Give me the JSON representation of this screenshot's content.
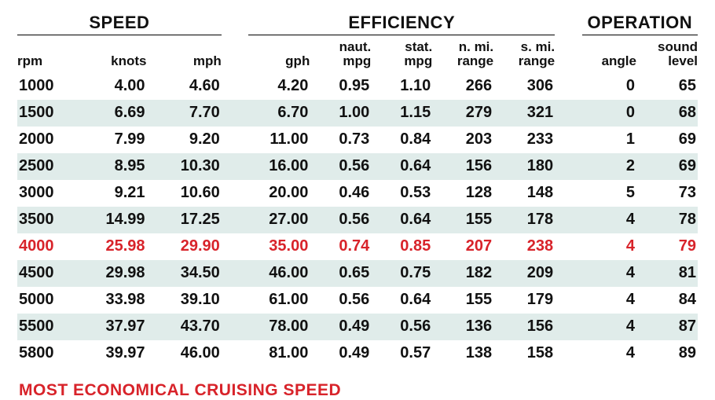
{
  "table": {
    "group_headers": {
      "speed": "SPEED",
      "efficiency": "EFFICIENCY",
      "operation": "OPERATION"
    },
    "sub_headers": {
      "rpm": "rpm",
      "knots": "knots",
      "mph": "mph",
      "gph": "gph",
      "nmpg_l1": "naut.",
      "nmpg_l2": "mpg",
      "smpg_l1": "stat.",
      "smpg_l2": "mpg",
      "nrng_l1": "n. mi.",
      "nrng_l2": "range",
      "srng_l1": "s. mi.",
      "srng_l2": "range",
      "angle": "angle",
      "snd_l1": "sound",
      "snd_l2": "level"
    },
    "rows": [
      {
        "rpm": "1000",
        "knots": "4.00",
        "mph": "4.60",
        "gph": "4.20",
        "nmpg": "0.95",
        "smpg": "1.10",
        "nrng": "266",
        "srng": "306",
        "angle": "0",
        "snd": "65",
        "band": false,
        "hl": false
      },
      {
        "rpm": "1500",
        "knots": "6.69",
        "mph": "7.70",
        "gph": "6.70",
        "nmpg": "1.00",
        "smpg": "1.15",
        "nrng": "279",
        "srng": "321",
        "angle": "0",
        "snd": "68",
        "band": true,
        "hl": false
      },
      {
        "rpm": "2000",
        "knots": "7.99",
        "mph": "9.20",
        "gph": "11.00",
        "nmpg": "0.73",
        "smpg": "0.84",
        "nrng": "203",
        "srng": "233",
        "angle": "1",
        "snd": "69",
        "band": false,
        "hl": false
      },
      {
        "rpm": "2500",
        "knots": "8.95",
        "mph": "10.30",
        "gph": "16.00",
        "nmpg": "0.56",
        "smpg": "0.64",
        "nrng": "156",
        "srng": "180",
        "angle": "2",
        "snd": "69",
        "band": true,
        "hl": false
      },
      {
        "rpm": "3000",
        "knots": "9.21",
        "mph": "10.60",
        "gph": "20.00",
        "nmpg": "0.46",
        "smpg": "0.53",
        "nrng": "128",
        "srng": "148",
        "angle": "5",
        "snd": "73",
        "band": false,
        "hl": false
      },
      {
        "rpm": "3500",
        "knots": "14.99",
        "mph": "17.25",
        "gph": "27.00",
        "nmpg": "0.56",
        "smpg": "0.64",
        "nrng": "155",
        "srng": "178",
        "angle": "4",
        "snd": "78",
        "band": true,
        "hl": false
      },
      {
        "rpm": "4000",
        "knots": "25.98",
        "mph": "29.90",
        "gph": "35.00",
        "nmpg": "0.74",
        "smpg": "0.85",
        "nrng": "207",
        "srng": "238",
        "angle": "4",
        "snd": "79",
        "band": false,
        "hl": true
      },
      {
        "rpm": "4500",
        "knots": "29.98",
        "mph": "34.50",
        "gph": "46.00",
        "nmpg": "0.65",
        "smpg": "0.75",
        "nrng": "182",
        "srng": "209",
        "angle": "4",
        "snd": "81",
        "band": true,
        "hl": false
      },
      {
        "rpm": "5000",
        "knots": "33.98",
        "mph": "39.10",
        "gph": "61.00",
        "nmpg": "0.56",
        "smpg": "0.64",
        "nrng": "155",
        "srng": "179",
        "angle": "4",
        "snd": "84",
        "band": false,
        "hl": false
      },
      {
        "rpm": "5500",
        "knots": "37.97",
        "mph": "43.70",
        "gph": "78.00",
        "nmpg": "0.49",
        "smpg": "0.56",
        "nrng": "136",
        "srng": "156",
        "angle": "4",
        "snd": "87",
        "band": true,
        "hl": false
      },
      {
        "rpm": "5800",
        "knots": "39.97",
        "mph": "46.00",
        "gph": "81.00",
        "nmpg": "0.49",
        "smpg": "0.57",
        "nrng": "138",
        "srng": "158",
        "angle": "4",
        "snd": "89",
        "band": false,
        "hl": false
      }
    ],
    "highlight_color": "#d8232a",
    "band_color": "#e0ecea"
  },
  "footer_note": "MOST ECONOMICAL CRUISING SPEED"
}
